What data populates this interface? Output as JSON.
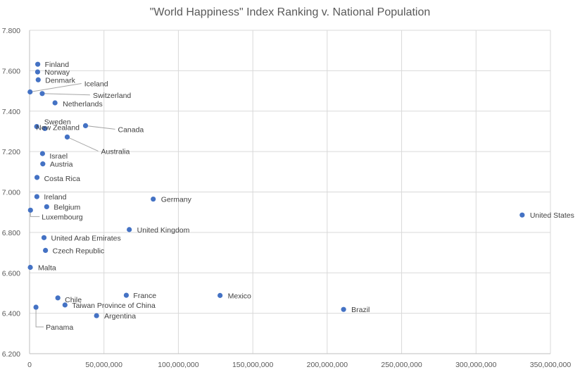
{
  "chart_data": {
    "type": "scatter",
    "title": "\"World Happiness\" Index Ranking v. National Population",
    "xlabel": "",
    "ylabel": "",
    "xlim": [
      0,
      350000000
    ],
    "ylim": [
      6.2,
      7.8
    ],
    "x_ticks": [
      0,
      50000000,
      100000000,
      150000000,
      200000000,
      250000000,
      300000000,
      350000000
    ],
    "x_tick_labels": [
      "0",
      "50,000,000",
      "100,000,000",
      "150,000,000",
      "200,000,000",
      "250,000,000",
      "300,000,000",
      "350,000,000"
    ],
    "y_ticks": [
      6.2,
      6.4,
      6.6,
      6.8,
      7.0,
      7.2,
      7.4,
      7.6,
      7.8
    ],
    "y_tick_labels": [
      "6.200",
      "6.400",
      "6.600",
      "6.800",
      "7.000",
      "7.200",
      "7.400",
      "7.600",
      "7.800"
    ],
    "grid": true,
    "legend": "none",
    "marker_color": "#4472c4",
    "points": [
      {
        "label": "Finland",
        "x": 5500000,
        "y": 7.632
      },
      {
        "label": "Norway",
        "x": 5400000,
        "y": 7.594
      },
      {
        "label": "Denmark",
        "x": 5800000,
        "y": 7.555
      },
      {
        "label": "Iceland",
        "x": 340000,
        "y": 7.495
      },
      {
        "label": "Switzerland",
        "x": 8500000,
        "y": 7.487
      },
      {
        "label": "Netherlands",
        "x": 17100000,
        "y": 7.441
      },
      {
        "label": "Sweden",
        "x": 10300000,
        "y": 7.314
      },
      {
        "label": "New Zealand",
        "x": 4800000,
        "y": 7.324
      },
      {
        "label": "Canada",
        "x": 37600000,
        "y": 7.328
      },
      {
        "label": "Australia",
        "x": 25300000,
        "y": 7.272
      },
      {
        "label": "Israel",
        "x": 8700000,
        "y": 7.19
      },
      {
        "label": "Austria",
        "x": 8900000,
        "y": 7.139
      },
      {
        "label": "Costa Rica",
        "x": 5000000,
        "y": 7.072
      },
      {
        "label": "Ireland",
        "x": 4900000,
        "y": 6.977
      },
      {
        "label": "Germany",
        "x": 83100000,
        "y": 6.965
      },
      {
        "label": "Belgium",
        "x": 11500000,
        "y": 6.927
      },
      {
        "label": "Luxembourg",
        "x": 610000,
        "y": 6.91
      },
      {
        "label": "United States",
        "x": 331000000,
        "y": 6.886
      },
      {
        "label": "United Kingdom",
        "x": 67000000,
        "y": 6.814
      },
      {
        "label": "United Arab Emirates",
        "x": 9700000,
        "y": 6.774
      },
      {
        "label": "Czech Republic",
        "x": 10700000,
        "y": 6.711
      },
      {
        "label": "Malta",
        "x": 500000,
        "y": 6.627
      },
      {
        "label": "France",
        "x": 65000000,
        "y": 6.489
      },
      {
        "label": "Mexico",
        "x": 128000000,
        "y": 6.488
      },
      {
        "label": "Chile",
        "x": 19000000,
        "y": 6.476
      },
      {
        "label": "Taiwan Province of China",
        "x": 23800000,
        "y": 6.441
      },
      {
        "label": "Panama",
        "x": 4300000,
        "y": 6.43
      },
      {
        "label": "Brazil",
        "x": 211000000,
        "y": 6.419
      },
      {
        "label": "Argentina",
        "x": 45000000,
        "y": 6.388
      }
    ]
  }
}
